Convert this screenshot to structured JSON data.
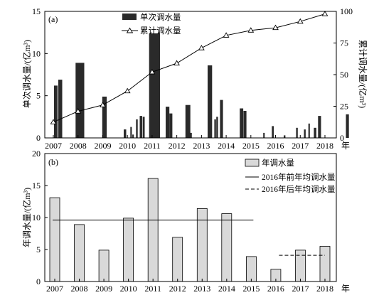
{
  "chart_data": [
    {
      "panel_label": "(a)",
      "type": "bar+line",
      "ylabel_left": "单次调水量/(亿m³)",
      "ylabel_right": "累计调水量/(亿m³)",
      "ylim_left": [
        0,
        15
      ],
      "ylim_right": [
        0,
        100
      ],
      "yticks_left": [
        "0",
        "5",
        "10",
        "15"
      ],
      "yticks_right": [
        "0",
        "25",
        "50",
        "75",
        "100"
      ],
      "xticks": [
        "2007",
        "2008",
        "2009",
        "2010",
        "2011",
        "2012",
        "2013",
        "2014",
        "2015",
        "2016",
        "2017",
        "2018"
      ],
      "x_unit": "年",
      "legend": {
        "placement": "top-center",
        "bar_label": "单次调水量",
        "line_label": "累计调水量"
      },
      "bar_color": "#2a2a2a",
      "bars": [
        {
          "t": 2007.03,
          "w": 0.14,
          "v": 6.2
        },
        {
          "t": 2007.2,
          "w": 0.16,
          "v": 6.9
        },
        {
          "t": 2007.9,
          "w": 0.35,
          "v": 8.9
        },
        {
          "t": 2008.98,
          "w": 0.18,
          "v": 4.9
        },
        {
          "t": 2009.85,
          "w": 0.1,
          "v": 1.0
        },
        {
          "t": 2010.12,
          "w": 0.06,
          "v": 1.3
        },
        {
          "t": 2010.2,
          "w": 0.06,
          "v": 0.4
        },
        {
          "t": 2010.35,
          "w": 0.07,
          "v": 2.2
        },
        {
          "t": 2010.5,
          "w": 0.1,
          "v": 2.6
        },
        {
          "t": 2010.62,
          "w": 0.08,
          "v": 2.5
        },
        {
          "t": 2010.88,
          "w": 0.44,
          "v": 12.4
        },
        {
          "t": 2011.55,
          "w": 0.15,
          "v": 3.7
        },
        {
          "t": 2011.7,
          "w": 0.12,
          "v": 2.9
        },
        {
          "t": 2012.35,
          "w": 0.2,
          "v": 3.9
        },
        {
          "t": 2012.53,
          "w": 0.08,
          "v": 0.6
        },
        {
          "t": 2013.25,
          "w": 0.18,
          "v": 8.6
        },
        {
          "t": 2013.52,
          "w": 0.07,
          "v": 2.2
        },
        {
          "t": 2013.6,
          "w": 0.07,
          "v": 2.5
        },
        {
          "t": 2013.75,
          "w": 0.12,
          "v": 4.5
        },
        {
          "t": 2014.55,
          "w": 0.14,
          "v": 3.5
        },
        {
          "t": 2014.7,
          "w": 0.12,
          "v": 3.2
        },
        {
          "t": 2015.5,
          "w": 0.06,
          "v": 0.6
        },
        {
          "t": 2015.85,
          "w": 0.08,
          "v": 1.4
        },
        {
          "t": 2016.33,
          "w": 0.07,
          "v": 0.3
        },
        {
          "t": 2016.83,
          "w": 0.07,
          "v": 1.2
        },
        {
          "t": 2017.15,
          "w": 0.07,
          "v": 1.0
        },
        {
          "t": 2017.33,
          "w": 0.06,
          "v": 1.7
        },
        {
          "t": 2017.55,
          "w": 0.1,
          "v": 1.2
        },
        {
          "t": 2017.72,
          "w": 0.12,
          "v": 2.6
        },
        {
          "t": 2018.85,
          "w": 0.12,
          "v": 2.8
        }
      ],
      "cumulative": [
        {
          "t": 2007.0,
          "v": 12.5
        },
        {
          "t": 2008.0,
          "v": 21
        },
        {
          "t": 2009.0,
          "v": 26
        },
        {
          "t": 2010.0,
          "v": 37
        },
        {
          "t": 2011.0,
          "v": 52
        },
        {
          "t": 2012.0,
          "v": 59
        },
        {
          "t": 2013.0,
          "v": 71
        },
        {
          "t": 2014.0,
          "v": 81
        },
        {
          "t": 2015.0,
          "v": 85
        },
        {
          "t": 2016.0,
          "v": 87
        },
        {
          "t": 2017.0,
          "v": 92
        },
        {
          "t": 2018.0,
          "v": 98
        }
      ]
    },
    {
      "panel_label": "(b)",
      "type": "bar",
      "ylabel": "年调水量/(亿m³)",
      "ylim": [
        0,
        20
      ],
      "yticks": [
        "0",
        "5",
        "10",
        "15",
        "20"
      ],
      "categories": [
        "2007",
        "2008",
        "2009",
        "2010",
        "2011",
        "2012",
        "2013",
        "2014",
        "2015",
        "2016",
        "2017",
        "2018"
      ],
      "x_unit": "年",
      "values": [
        13.1,
        8.9,
        4.9,
        9.9,
        16.1,
        6.9,
        11.4,
        10.6,
        3.9,
        1.9,
        4.9,
        5.5
      ],
      "bar_color": "#d9d9d9",
      "legend": {
        "placement": "top-right",
        "bar_label": "年调水量",
        "solid_label": "2016年前年均调水量",
        "dashed_label": "2016年后年均调水量"
      },
      "avg_before_2016": {
        "value": 9.6,
        "from": 2007,
        "to": 2015
      },
      "avg_after_2016": {
        "value": 4.1,
        "from": 2017,
        "to": 2018
      }
    }
  ]
}
